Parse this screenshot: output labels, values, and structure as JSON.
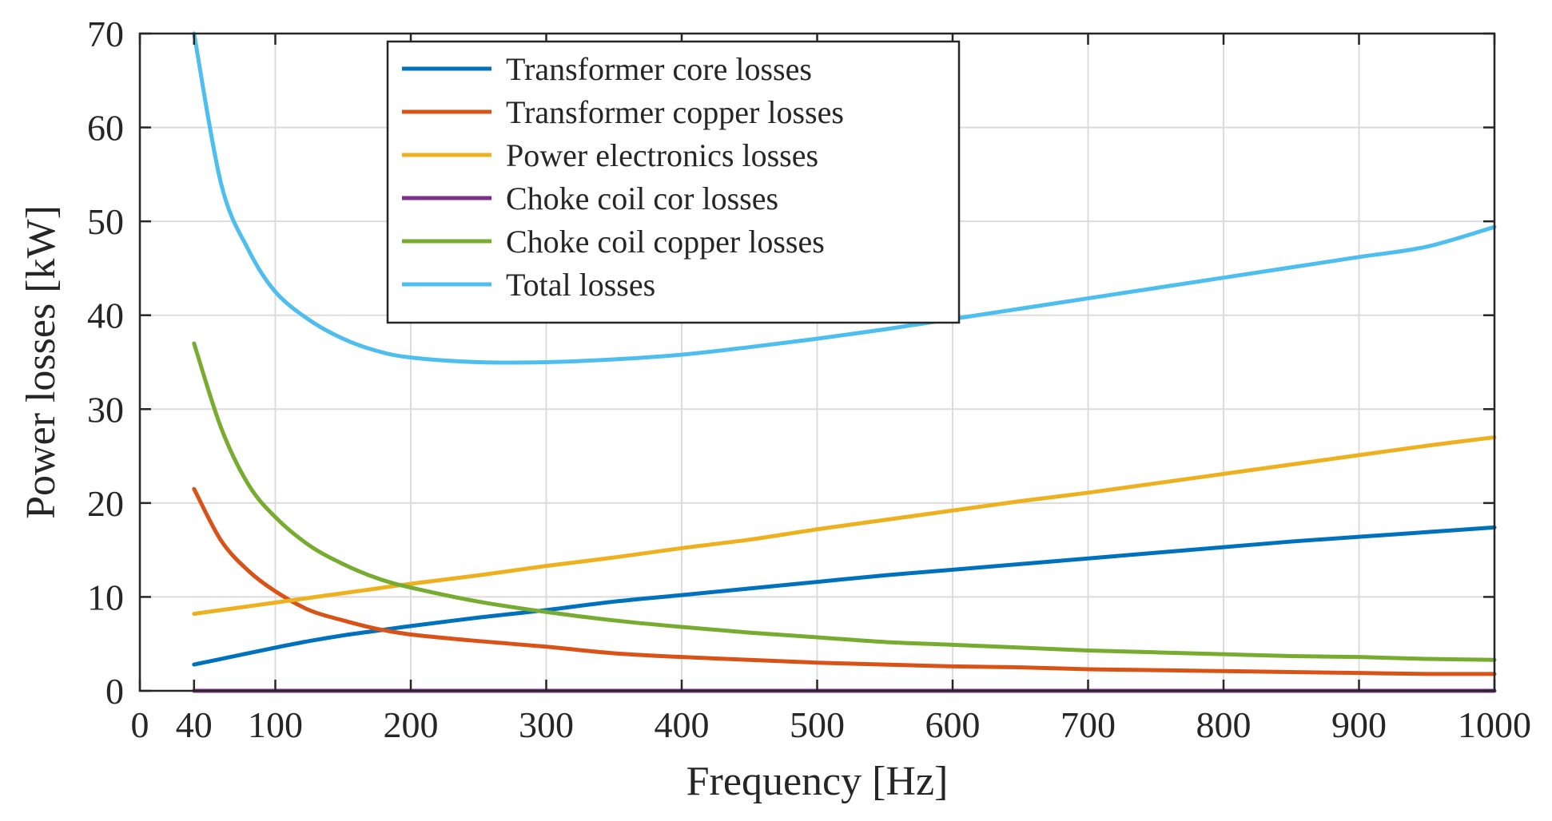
{
  "chart_data": {
    "type": "line",
    "title": "",
    "xlabel": "Frequency [Hz]",
    "ylabel": "Power losses [kW]",
    "xlim": [
      0,
      1000
    ],
    "ylim": [
      0,
      70
    ],
    "xticks": [
      0,
      40,
      100,
      200,
      300,
      400,
      500,
      600,
      700,
      800,
      900,
      1000
    ],
    "xtick_labels": [
      "0",
      "40",
      "100",
      "200",
      "300",
      "400",
      "500",
      "600",
      "700",
      "800",
      "900",
      "1000"
    ],
    "yticks": [
      0,
      10,
      20,
      30,
      40,
      50,
      60,
      70
    ],
    "ytick_labels": [
      "0",
      "10",
      "20",
      "30",
      "40",
      "50",
      "60",
      "70"
    ],
    "grid": true,
    "legend_position": "top-left",
    "x": [
      40,
      60,
      80,
      100,
      125,
      150,
      175,
      200,
      250,
      300,
      350,
      400,
      450,
      500,
      550,
      600,
      650,
      700,
      750,
      800,
      850,
      900,
      950,
      1000
    ],
    "series": [
      {
        "name": "Transformer core losses",
        "color": "#0072BD",
        "values": [
          2.8,
          3.4,
          4.0,
          4.6,
          5.3,
          5.9,
          6.4,
          6.9,
          7.8,
          8.6,
          9.5,
          10.2,
          10.9,
          11.6,
          12.3,
          12.9,
          13.5,
          14.1,
          14.7,
          15.3,
          15.9,
          16.4,
          16.9,
          17.4
        ]
      },
      {
        "name": "Transformer copper losses",
        "color": "#D95319",
        "values": [
          21.5,
          16.0,
          12.8,
          10.6,
          8.6,
          7.5,
          6.6,
          6.0,
          5.3,
          4.7,
          4.0,
          3.6,
          3.3,
          3.0,
          2.8,
          2.6,
          2.5,
          2.3,
          2.2,
          2.1,
          2.0,
          1.9,
          1.8,
          1.8
        ]
      },
      {
        "name": "Power electronics losses",
        "color": "#EDB120",
        "values": [
          8.2,
          8.6,
          9.0,
          9.4,
          9.9,
          10.4,
          10.9,
          11.4,
          12.3,
          13.3,
          14.2,
          15.2,
          16.1,
          17.2,
          18.2,
          19.2,
          20.2,
          21.1,
          22.1,
          23.1,
          24.1,
          25.1,
          26.1,
          27.0
        ]
      },
      {
        "name": "Choke coil cor losses",
        "color": "#7E2F8E",
        "values": [
          0,
          0,
          0,
          0,
          0,
          0,
          0,
          0,
          0,
          0,
          0,
          0,
          0,
          0,
          0,
          0,
          0,
          0,
          0,
          0,
          0,
          0,
          0,
          0
        ]
      },
      {
        "name": "Choke coil copper losses",
        "color": "#77AC30",
        "values": [
          37.0,
          28.0,
          22.0,
          18.5,
          15.5,
          13.5,
          12.0,
          11.0,
          9.5,
          8.4,
          7.5,
          6.8,
          6.2,
          5.7,
          5.2,
          4.9,
          4.6,
          4.3,
          4.1,
          3.9,
          3.7,
          3.6,
          3.4,
          3.3
        ]
      },
      {
        "name": "Total losses",
        "color": "#4DBEEE",
        "values": [
          70.0,
          54.0,
          47.0,
          42.5,
          39.5,
          37.5,
          36.2,
          35.5,
          35.0,
          35.0,
          35.3,
          35.8,
          36.6,
          37.5,
          38.5,
          39.6,
          40.7,
          41.8,
          42.9,
          44.0,
          45.1,
          46.2,
          47.3,
          49.4
        ]
      }
    ]
  }
}
